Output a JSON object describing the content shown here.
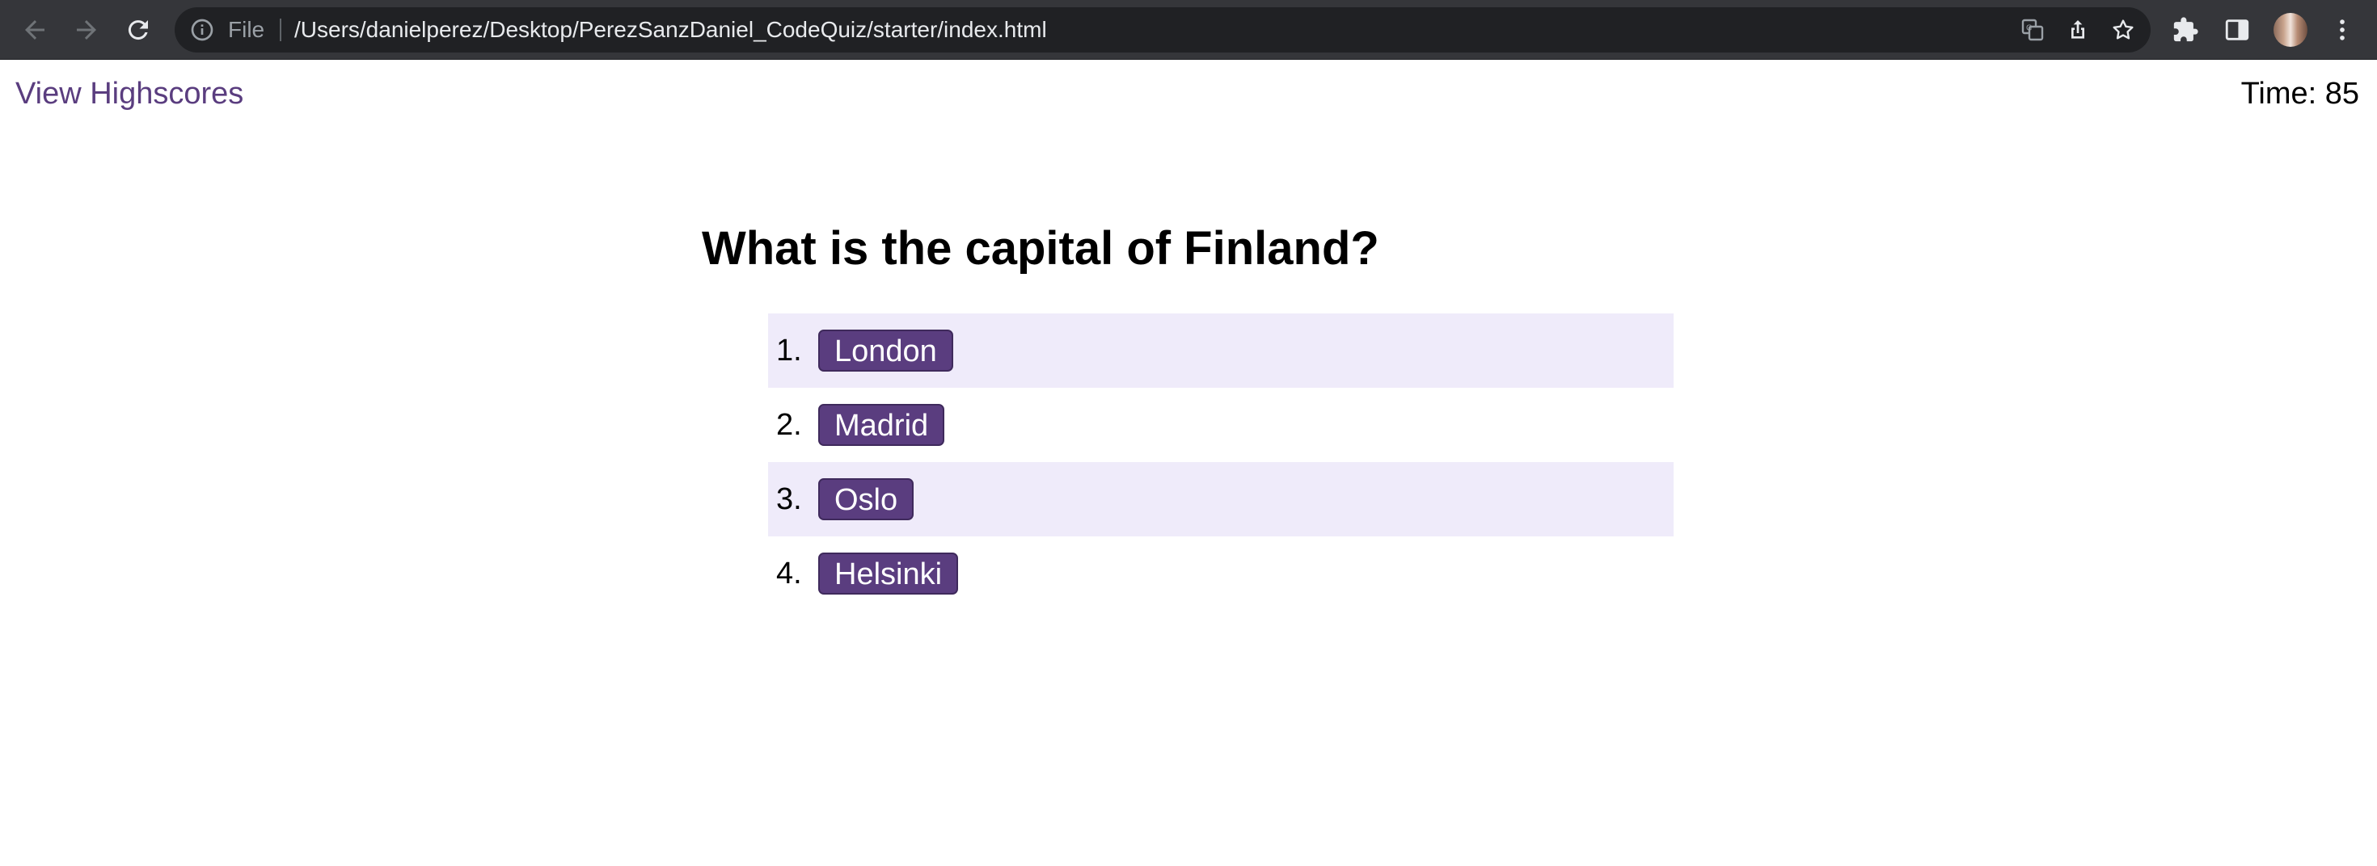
{
  "browser": {
    "url_scheme": "File",
    "url": "/Users/danielperez/Desktop/PerezSanzDaniel_CodeQuiz/starter/index.html",
    "toolbar_icons": [
      "back-icon",
      "forward-icon",
      "reload-icon",
      "info-icon",
      "translate-icon",
      "share-icon",
      "star-icon",
      "extensions-icon",
      "side-panel-icon",
      "profile-avatar",
      "menu-icon"
    ]
  },
  "header": {
    "highscores_label": "View Highscores",
    "timer_label": "Time: 85"
  },
  "quiz": {
    "question": "What is the capital of Finland?",
    "answers": [
      {
        "number": "1.",
        "label": "London"
      },
      {
        "number": "2.",
        "label": "Madrid"
      },
      {
        "number": "3.",
        "label": "Oslo"
      },
      {
        "number": "4.",
        "label": "Helsinki"
      }
    ]
  },
  "colors": {
    "accent": "#5a3d7f",
    "row_highlight": "#efebfa",
    "chrome_bg": "#35363a",
    "omnibox_bg": "#202124"
  }
}
